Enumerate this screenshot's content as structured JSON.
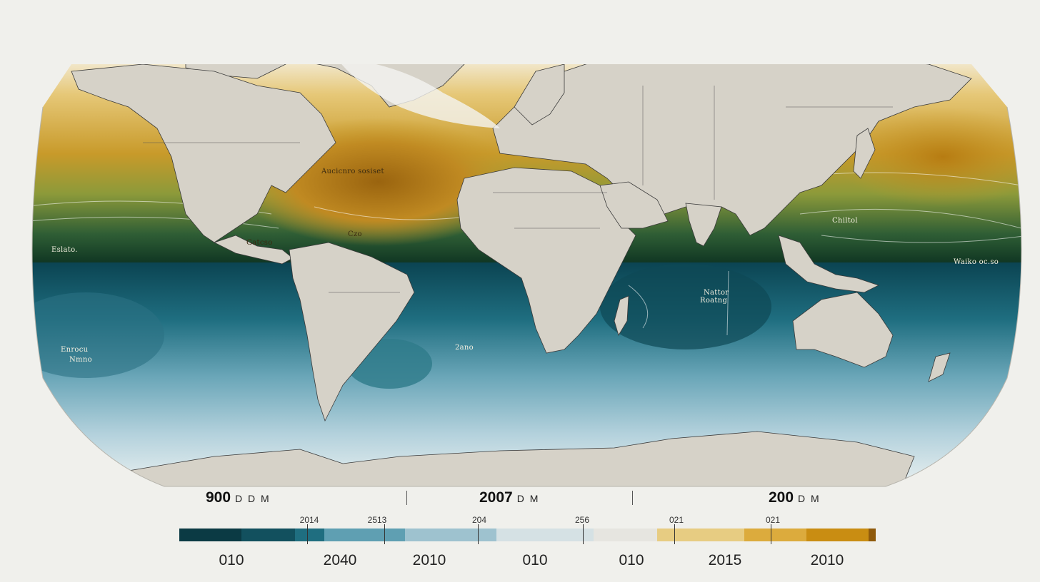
{
  "map": {
    "ocean_colors": {
      "deep_teal": "#0b4452",
      "teal": "#1f6e80",
      "mid_blue": "#5f9fb2",
      "light_blue": "#a9cbd8",
      "pale": "#dde9ee",
      "green": "#3c6a3a",
      "dark_green": "#123a26",
      "gold": "#c89a2a",
      "light_gold": "#e2c677",
      "brown_gold": "#a96f16",
      "land": "#d6d2c8"
    },
    "labels": [
      "Aucicnro sosiset",
      "Eslato.",
      "Gatcso",
      "Czo",
      "Chiltol",
      "Waiko oc.so",
      "Enrocu",
      "Nmno",
      "Nattor",
      "Roatng",
      "2ano"
    ]
  },
  "header": {
    "left_value": "900",
    "left_unit": "D D M",
    "center_value": "2007",
    "center_unit": "D M",
    "right_value": "200",
    "right_unit": "D M"
  },
  "legend": {
    "colors": [
      "#0b3a44",
      "#12505e",
      "#1f6e80",
      "#5f9fb2",
      "#9ec2cf",
      "#d5e1e4",
      "#e6e5e0",
      "#e7cc82",
      "#dcab3d",
      "#c98d12",
      "#8f5a0c"
    ],
    "upper_labels": [
      "2014",
      "2513",
      "204",
      "256",
      "021",
      "021"
    ],
    "lower_labels": [
      "010",
      "2040",
      "2010",
      "010",
      "010",
      "2015",
      "2010"
    ]
  }
}
